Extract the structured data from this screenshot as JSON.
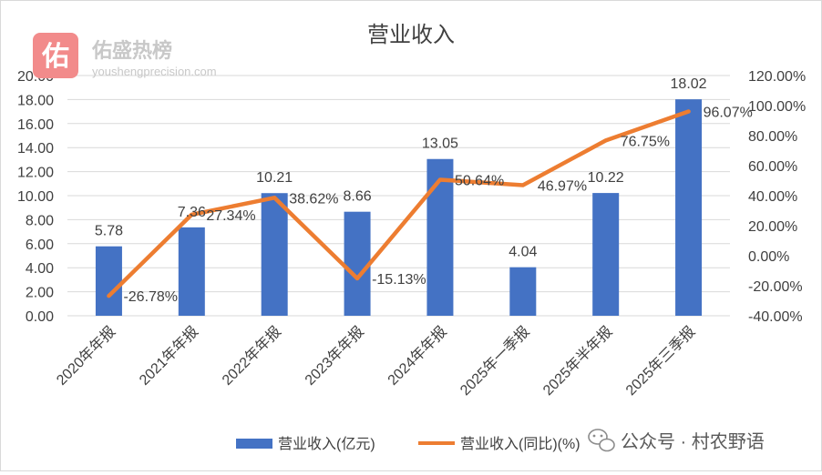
{
  "chart_data": {
    "type": "bar",
    "title": "营业收入",
    "categories": [
      "2020年年报",
      "2021年年报",
      "2022年年报",
      "2023年年报",
      "2024年年报",
      "2025年一季报",
      "2025年半年报",
      "2025年三季报"
    ],
    "series": [
      {
        "name": "营业收入(亿元)",
        "type": "bar",
        "axis": "left",
        "color": "#4472C4",
        "values": [
          5.78,
          7.36,
          10.21,
          8.66,
          13.05,
          4.04,
          10.22,
          18.02
        ],
        "labels": [
          "5.78",
          "7.36",
          "10.21",
          "8.66",
          "13.05",
          "4.04",
          "10.22",
          "18.02"
        ]
      },
      {
        "name": "营业收入(同比)(%)",
        "type": "line",
        "axis": "right",
        "color": "#ED7D31",
        "values": [
          -26.78,
          27.34,
          38.62,
          -15.13,
          50.64,
          46.97,
          76.75,
          96.07
        ],
        "labels": [
          "-26.78%",
          "27.34%",
          "38.62%",
          "-15.13%",
          "50.64%",
          "46.97%",
          "76.75%",
          "96.07%"
        ]
      }
    ],
    "y_left": {
      "range": [
        0,
        20
      ],
      "ticks": [
        0,
        2,
        4,
        6,
        8,
        10,
        12,
        14,
        16,
        18,
        20
      ],
      "tick_labels": [
        "0.00",
        "2.00",
        "4.00",
        "6.00",
        "8.00",
        "10.00",
        "12.00",
        "14.00",
        "16.00",
        "18.00",
        "20.00"
      ]
    },
    "y_right": {
      "range": [
        -40,
        120
      ],
      "ticks": [
        -40,
        -20,
        0,
        20,
        40,
        60,
        80,
        100,
        120
      ],
      "tick_labels": [
        "-40.00%",
        "-20.00%",
        "0.00%",
        "20.00%",
        "40.00%",
        "60.00%",
        "80.00%",
        "100.00%",
        "120.00%"
      ]
    },
    "grid": true,
    "legend": "bottom"
  },
  "watermark": {
    "badge_char": "佑",
    "name": "佑盛热榜",
    "url": "youshengprecision.com",
    "badge_color": "#f28b8b"
  },
  "source": {
    "icon": "wechat-icon",
    "text": "公众号 · 村农野语"
  }
}
